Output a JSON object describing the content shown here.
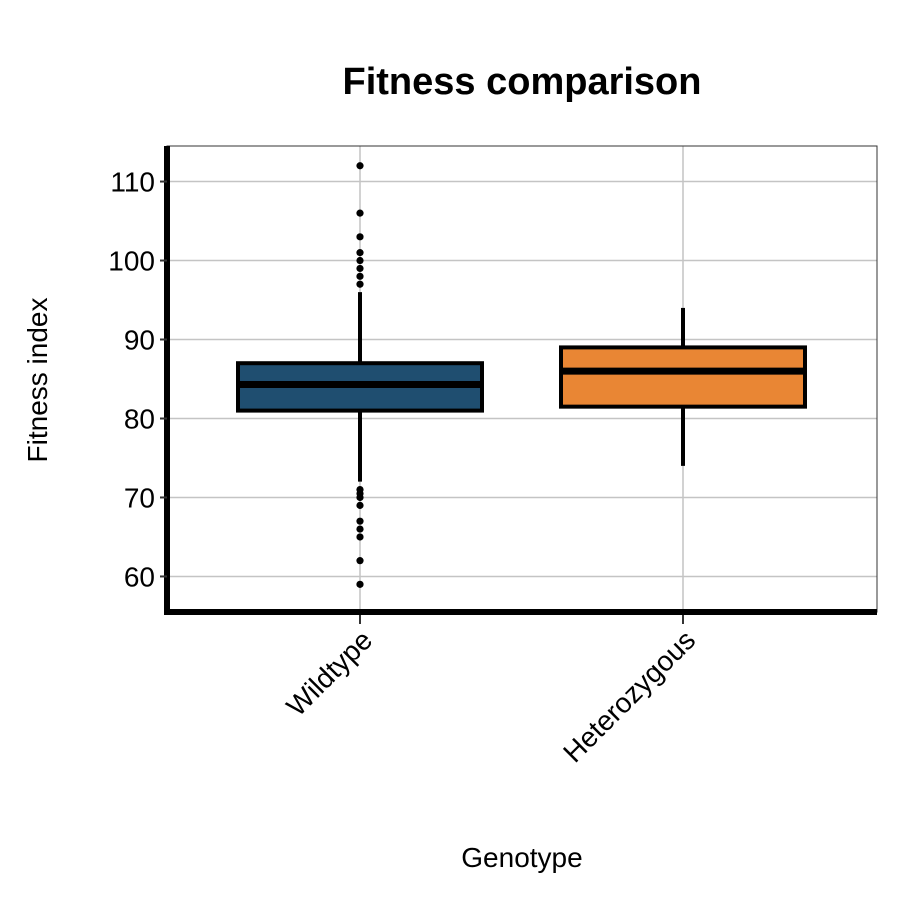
{
  "chart_data": {
    "type": "box",
    "title": "Fitness comparison",
    "xlabel": "Genotype",
    "ylabel": "Fitness index",
    "ylim": [
      55.5,
      114.5
    ],
    "yticks": [
      60,
      70,
      80,
      90,
      100,
      110
    ],
    "ytick_labels": [
      "60",
      "70",
      "80",
      "90",
      "100",
      "110"
    ],
    "grid": true,
    "categories": [
      "Wildtype",
      "Heterozygous"
    ],
    "boxes": [
      {
        "name": "Wildtype",
        "q1": 81,
        "median": 84.3,
        "q3": 87,
        "whisker_low": 72,
        "whisker_high": 96,
        "outliers": [
          112,
          106,
          103,
          101,
          100,
          99,
          98,
          97,
          71,
          70.5,
          70,
          69,
          67,
          66,
          65,
          62,
          59
        ],
        "fill": "#1f4e70"
      },
      {
        "name": "Heterozygous",
        "q1": 81.5,
        "median": 86,
        "q3": 89,
        "whisker_low": 74,
        "whisker_high": 94,
        "outliers": [],
        "fill": "#e98634"
      }
    ]
  }
}
